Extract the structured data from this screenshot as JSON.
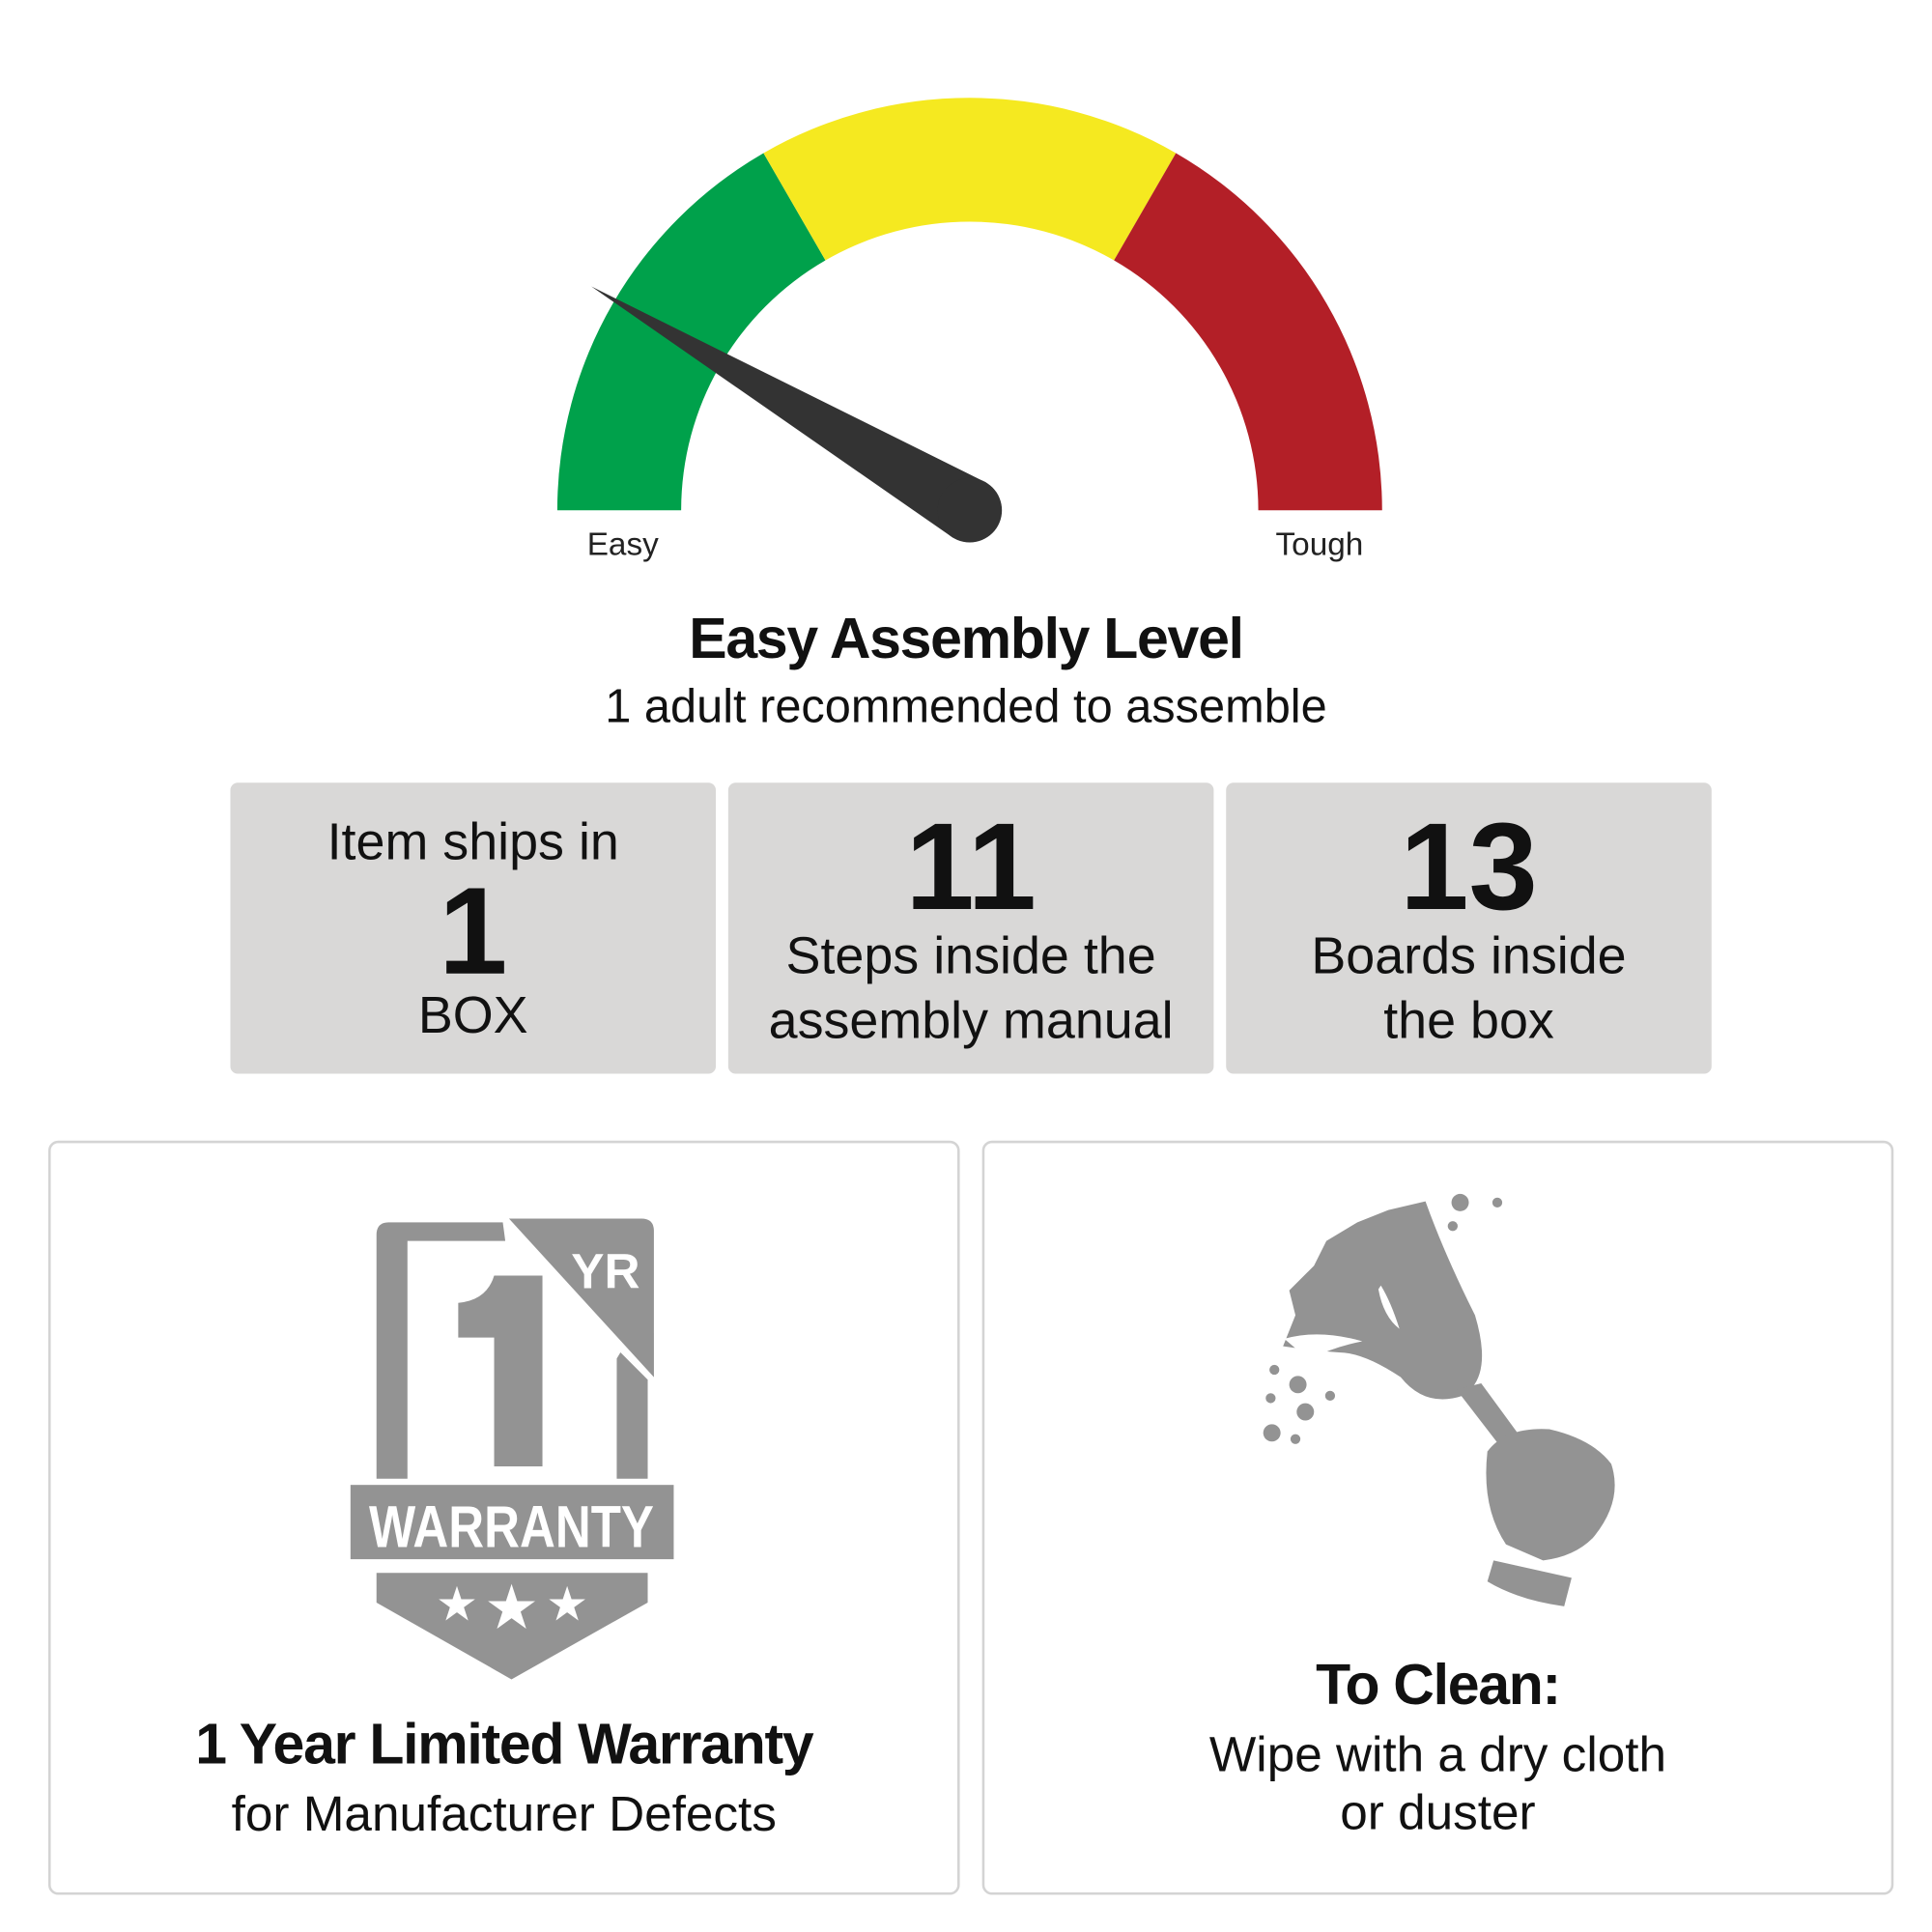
{
  "gauge": {
    "min_label": "Easy",
    "max_label": "Tough",
    "level": 0.17,
    "segments": [
      {
        "name": "easy",
        "color": "#00a14b"
      },
      {
        "name": "medium",
        "color": "#f5e920"
      },
      {
        "name": "tough",
        "color": "#b31f27"
      }
    ],
    "needle_color": "#333333"
  },
  "title": "Easy Assembly Level",
  "subtitle": "1 adult recommended to assemble",
  "stats": [
    {
      "top": "Item ships in",
      "value": "1",
      "bottom": "BOX"
    },
    {
      "value": "11",
      "line1": "Steps inside the",
      "line2": "assembly manual"
    },
    {
      "value": "13",
      "line1": "Boards inside",
      "line2": "the box"
    }
  ],
  "warranty": {
    "badge": {
      "number": "1",
      "unit": "YR",
      "band": "WARRANTY"
    },
    "heading": "1 Year Limited Warranty",
    "text": "for Manufacturer Defects",
    "icon_color": "#939393"
  },
  "cleaning": {
    "icon": "duster-hand-icon",
    "heading": "To Clean:",
    "line1": "Wipe with a dry cloth",
    "line2": "or duster"
  }
}
